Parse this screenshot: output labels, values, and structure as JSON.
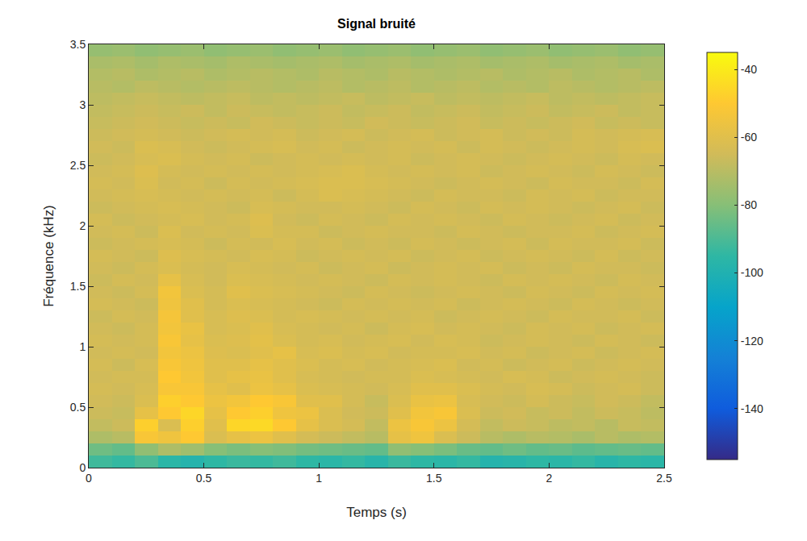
{
  "chart_data": {
    "type": "heatmap",
    "title": "Signal bruité",
    "x_label": "Temps (s)",
    "y_label": "Fréquence (kHz)",
    "x": [
      0.05,
      0.15,
      0.25,
      0.35,
      0.45,
      0.55,
      0.65,
      0.75,
      0.85,
      0.95,
      1.05,
      1.15,
      1.25,
      1.35,
      1.45,
      1.55,
      1.65,
      1.75,
      1.85,
      1.95,
      2.05,
      2.15,
      2.25,
      2.35,
      2.45
    ],
    "y": [
      0.05,
      0.15,
      0.25,
      0.35,
      0.45,
      0.55,
      0.65,
      0.75,
      0.85,
      0.95,
      1.05,
      1.15,
      1.25,
      1.35,
      1.45,
      1.55,
      1.65,
      1.75,
      1.85,
      1.95,
      2.05,
      2.15,
      2.25,
      2.35,
      2.45,
      2.55,
      2.65,
      2.75,
      2.85,
      2.95,
      3.05,
      3.15,
      3.25,
      3.35,
      3.45
    ],
    "z": [
      [
        -92,
        -94,
        -90,
        -96,
        -98,
        -95,
        -93,
        -94,
        -92,
        -95,
        -96,
        -94,
        -97,
        -93,
        -95,
        -96,
        -94,
        -98,
        -97,
        -95,
        -96,
        -94,
        -97,
        -95,
        -96
      ],
      [
        -84,
        -86,
        -78,
        -72,
        -75,
        -80,
        -82,
        -80,
        -81,
        -83,
        -84,
        -85,
        -86,
        -78,
        -80,
        -82,
        -85,
        -86,
        -84,
        -86,
        -85,
        -87,
        -86,
        -85,
        -86
      ],
      [
        -72,
        -70,
        -52,
        -55,
        -50,
        -62,
        -58,
        -56,
        -60,
        -64,
        -66,
        -68,
        -70,
        -58,
        -55,
        -62,
        -66,
        -70,
        -72,
        -70,
        -71,
        -73,
        -70,
        -72,
        -71
      ],
      [
        -68,
        -66,
        -48,
        -62,
        -48,
        -60,
        -46,
        -45,
        -50,
        -58,
        -62,
        -64,
        -68,
        -56,
        -52,
        -56,
        -64,
        -68,
        -66,
        -67,
        -69,
        -68,
        -70,
        -67,
        -68
      ],
      [
        -66,
        -67,
        -58,
        -50,
        -46,
        -58,
        -50,
        -48,
        -55,
        -56,
        -62,
        -65,
        -66,
        -60,
        -54,
        -52,
        -62,
        -66,
        -65,
        -67,
        -66,
        -68,
        -66,
        -67,
        -69
      ],
      [
        -65,
        -66,
        -62,
        -48,
        -50,
        -56,
        -54,
        -50,
        -52,
        -60,
        -60,
        -64,
        -67,
        -62,
        -57,
        -56,
        -63,
        -65,
        -66,
        -64,
        -66,
        -67,
        -65,
        -66,
        -68
      ],
      [
        -64,
        -65,
        -63,
        -52,
        -52,
        -58,
        -60,
        -56,
        -58,
        -62,
        -63,
        -64,
        -65,
        -63,
        -60,
        -60,
        -62,
        -64,
        -65,
        -63,
        -64,
        -66,
        -65,
        -64,
        -66
      ],
      [
        -65,
        -64,
        -64,
        -50,
        -54,
        -60,
        -58,
        -57,
        -60,
        -63,
        -64,
        -65,
        -64,
        -64,
        -62,
        -63,
        -64,
        -65,
        -63,
        -64,
        -66,
        -65,
        -64,
        -65,
        -66
      ],
      [
        -64,
        -66,
        -63,
        -52,
        -55,
        -60,
        -60,
        -58,
        -60,
        -62,
        -64,
        -63,
        -65,
        -64,
        -63,
        -62,
        -65,
        -64,
        -66,
        -65,
        -64,
        -66,
        -65,
        -64,
        -65
      ],
      [
        -65,
        -64,
        -65,
        -54,
        -56,
        -61,
        -62,
        -60,
        -58,
        -63,
        -62,
        -64,
        -63,
        -65,
        -64,
        -64,
        -63,
        -65,
        -64,
        -66,
        -65,
        -64,
        -66,
        -65,
        -64
      ],
      [
        -64,
        -65,
        -64,
        -52,
        -58,
        -62,
        -61,
        -59,
        -62,
        -64,
        -63,
        -65,
        -64,
        -63,
        -65,
        -63,
        -64,
        -66,
        -65,
        -64,
        -65,
        -66,
        -64,
        -65,
        -66
      ],
      [
        -65,
        -66,
        -64,
        -54,
        -57,
        -63,
        -62,
        -60,
        -63,
        -64,
        -65,
        -64,
        -66,
        -64,
        -63,
        -65,
        -64,
        -65,
        -66,
        -64,
        -65,
        -64,
        -66,
        -65,
        -64
      ],
      [
        -66,
        -64,
        -65,
        -53,
        -60,
        -63,
        -61,
        -62,
        -64,
        -63,
        -64,
        -65,
        -64,
        -65,
        -64,
        -66,
        -65,
        -64,
        -65,
        -66,
        -64,
        -65,
        -65,
        -64,
        -66
      ],
      [
        -64,
        -65,
        -66,
        -55,
        -60,
        -64,
        -62,
        -63,
        -64,
        -65,
        -66,
        -64,
        -65,
        -64,
        -65,
        -64,
        -66,
        -65,
        -64,
        -65,
        -66,
        -64,
        -65,
        -66,
        -65
      ],
      [
        -65,
        -66,
        -64,
        -54,
        -62,
        -64,
        -60,
        -62,
        -63,
        -64,
        -65,
        -66,
        -64,
        -65,
        -66,
        -65,
        -64,
        -65,
        -66,
        -64,
        -65,
        -66,
        -64,
        -65,
        -64
      ],
      [
        -66,
        -64,
        -65,
        -58,
        -63,
        -65,
        -62,
        -63,
        -64,
        -65,
        -64,
        -65,
        -66,
        -64,
        -65,
        -64,
        -65,
        -66,
        -64,
        -65,
        -64,
        -65,
        -66,
        -64,
        -65
      ],
      [
        -65,
        -66,
        -64,
        -62,
        -64,
        -65,
        -63,
        -64,
        -65,
        -64,
        -66,
        -65,
        -64,
        -66,
        -65,
        -64,
        -65,
        -64,
        -66,
        -65,
        -66,
        -64,
        -65,
        -65,
        -66
      ],
      [
        -64,
        -65,
        -66,
        -61,
        -63,
        -64,
        -65,
        -63,
        -64,
        -66,
        -65,
        -64,
        -65,
        -64,
        -66,
        -65,
        -64,
        -66,
        -65,
        -64,
        -65,
        -66,
        -64,
        -66,
        -65
      ],
      [
        -66,
        -65,
        -64,
        -63,
        -64,
        -66,
        -64,
        -65,
        -63,
        -65,
        -64,
        -66,
        -65,
        -66,
        -64,
        -65,
        -66,
        -65,
        -64,
        -66,
        -64,
        -65,
        -65,
        -64,
        -66
      ],
      [
        -65,
        -64,
        -66,
        -62,
        -65,
        -64,
        -65,
        -62,
        -64,
        -64,
        -66,
        -65,
        -64,
        -65,
        -65,
        -66,
        -64,
        -65,
        -66,
        -65,
        -65,
        -64,
        -66,
        -65,
        -64
      ],
      [
        -64,
        -66,
        -65,
        -64,
        -63,
        -65,
        -64,
        -61,
        -65,
        -66,
        -64,
        -65,
        -66,
        -64,
        -65,
        -64,
        -65,
        -66,
        -64,
        -65,
        -66,
        -65,
        -64,
        -66,
        -65
      ],
      [
        -66,
        -65,
        -64,
        -63,
        -64,
        -65,
        -66,
        -63,
        -64,
        -65,
        -65,
        -64,
        -65,
        -66,
        -64,
        -65,
        -66,
        -64,
        -65,
        -64,
        -65,
        -66,
        -65,
        -64,
        -66
      ],
      [
        -65,
        -64,
        -63,
        -64,
        -65,
        -64,
        -65,
        -64,
        -66,
        -64,
        -62,
        -63,
        -64,
        -65,
        -66,
        -64,
        -65,
        -65,
        -66,
        -64,
        -65,
        -64,
        -66,
        -65,
        -65
      ],
      [
        -64,
        -65,
        -62,
        -65,
        -64,
        -66,
        -64,
        -65,
        -64,
        -63,
        -62,
        -62,
        -63,
        -64,
        -65,
        -66,
        -65,
        -64,
        -65,
        -66,
        -64,
        -65,
        -65,
        -66,
        -64
      ],
      [
        -65,
        -64,
        -61,
        -64,
        -65,
        -64,
        -65,
        -64,
        -65,
        -64,
        -63,
        -62,
        -64,
        -65,
        -64,
        -65,
        -64,
        -66,
        -65,
        -64,
        -65,
        -66,
        -64,
        -65,
        -66
      ],
      [
        -66,
        -65,
        -63,
        -62,
        -64,
        -65,
        -64,
        -66,
        -65,
        -64,
        -65,
        -64,
        -65,
        -64,
        -66,
        -65,
        -64,
        -65,
        -66,
        -65,
        -64,
        -65,
        -66,
        -64,
        -65
      ],
      [
        -65,
        -66,
        -62,
        -63,
        -65,
        -66,
        -65,
        -64,
        -63,
        -65,
        -64,
        -66,
        -65,
        -64,
        -65,
        -64,
        -66,
        -64,
        -65,
        -66,
        -65,
        -64,
        -65,
        -63,
        -62
      ],
      [
        -66,
        -65,
        -64,
        -65,
        -66,
        -65,
        -64,
        -65,
        -64,
        -66,
        -65,
        -64,
        -66,
        -65,
        -64,
        -66,
        -65,
        -64,
        -66,
        -65,
        -66,
        -64,
        -65,
        -64,
        -63
      ],
      [
        -67,
        -66,
        -65,
        -66,
        -67,
        -66,
        -67,
        -65,
        -66,
        -67,
        -66,
        -67,
        -65,
        -66,
        -67,
        -66,
        -65,
        -67,
        -66,
        -67,
        -66,
        -65,
        -67,
        -66,
        -67
      ],
      [
        -68,
        -67,
        -66,
        -67,
        -66,
        -68,
        -66,
        -67,
        -68,
        -67,
        -66,
        -68,
        -67,
        -66,
        -68,
        -67,
        -66,
        -68,
        -67,
        -66,
        -68,
        -67,
        -66,
        -68,
        -67
      ],
      [
        -69,
        -68,
        -67,
        -68,
        -69,
        -68,
        -67,
        -69,
        -68,
        -69,
        -68,
        -67,
        -69,
        -68,
        -67,
        -69,
        -68,
        -69,
        -68,
        -67,
        -69,
        -68,
        -69,
        -68,
        -67
      ],
      [
        -70,
        -71,
        -69,
        -70,
        -71,
        -70,
        -69,
        -70,
        -71,
        -70,
        -69,
        -71,
        -70,
        -69,
        -71,
        -70,
        -69,
        -71,
        -70,
        -71,
        -69,
        -70,
        -71,
        -70,
        -69
      ],
      [
        -71,
        -70,
        -72,
        -71,
        -70,
        -72,
        -71,
        -70,
        -71,
        -72,
        -70,
        -71,
        -72,
        -70,
        -71,
        -72,
        -71,
        -70,
        -72,
        -71,
        -70,
        -72,
        -71,
        -70,
        -72
      ],
      [
        -73,
        -72,
        -74,
        -72,
        -73,
        -74,
        -72,
        -73,
        -74,
        -73,
        -72,
        -74,
        -73,
        -72,
        -74,
        -73,
        -72,
        -74,
        -73,
        -72,
        -74,
        -73,
        -72,
        -74,
        -73
      ],
      [
        -77,
        -76,
        -78,
        -77,
        -76,
        -78,
        -77,
        -76,
        -78,
        -77,
        -76,
        -78,
        -77,
        -76,
        -78,
        -77,
        -76,
        -78,
        -77,
        -76,
        -78,
        -77,
        -76,
        -78,
        -77
      ]
    ],
    "xlim": [
      0,
      2.5
    ],
    "xticks": [
      0,
      0.5,
      1,
      1.5,
      2,
      2.5
    ],
    "ylim": [
      0,
      3.5
    ],
    "yticks": [
      0,
      0.5,
      1,
      1.5,
      2,
      2.5,
      3,
      3.5
    ],
    "zlim": [
      -155,
      -35
    ],
    "zticks": [
      -40,
      -60,
      -80,
      -100,
      -120,
      -140
    ],
    "grid": false
  }
}
